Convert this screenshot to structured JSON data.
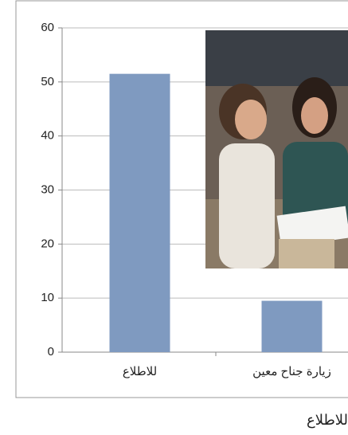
{
  "chart_data": {
    "type": "bar",
    "categories": [
      "للاطلاع",
      "زيارة جناح معين"
    ],
    "values": [
      51.5,
      9.5
    ],
    "color": "#7f9ac0",
    "ylim": [
      0,
      60
    ],
    "yticks": [
      0,
      10,
      20,
      30,
      40,
      50,
      60
    ],
    "grid": true
  },
  "caption": "للاطلاع"
}
